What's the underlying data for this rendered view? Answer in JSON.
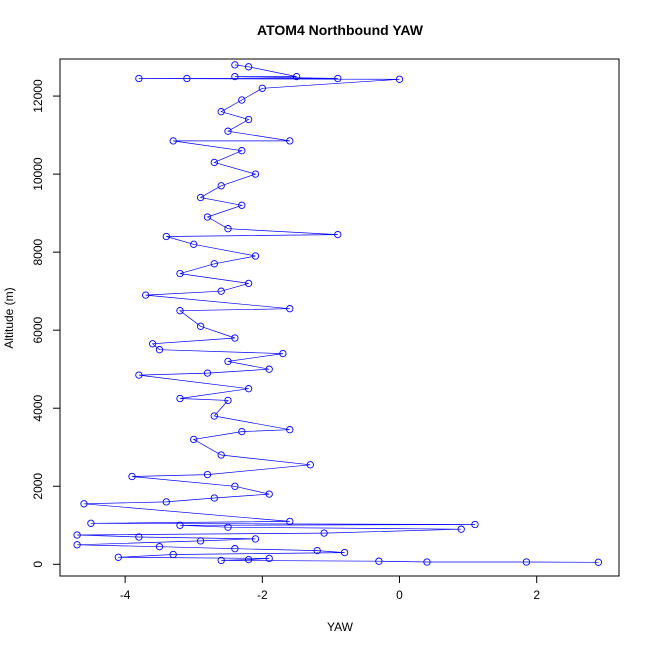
{
  "chart_data": {
    "type": "scatter",
    "title": "ATOM4 Northbound YAW",
    "xlabel": "YAW",
    "ylabel": "Altitude (m)",
    "xlim": [
      -4.95,
      3.2
    ],
    "ylim": [
      -300,
      12950
    ],
    "xticks": [
      -4,
      -2,
      0,
      2
    ],
    "yticks": [
      0,
      2000,
      4000,
      6000,
      8000,
      10000,
      12000
    ],
    "grid": false,
    "legend": "none",
    "series_color": "#0000ff",
    "points": [
      {
        "x": -2.6,
        "y": 100
      },
      {
        "x": -1.9,
        "y": 150
      },
      {
        "x": -3.3,
        "y": 250
      },
      {
        "x": 2.9,
        "y": 50
      },
      {
        "x": 1.85,
        "y": 60
      },
      {
        "x": 0.4,
        "y": 60
      },
      {
        "x": -0.3,
        "y": 80
      },
      {
        "x": -2.2,
        "y": 120
      },
      {
        "x": -4.1,
        "y": 180
      },
      {
        "x": -4.7,
        "y": 500
      },
      {
        "x": -3.5,
        "y": 450
      },
      {
        "x": -2.4,
        "y": 400
      },
      {
        "x": -1.2,
        "y": 350
      },
      {
        "x": -0.8,
        "y": 300
      },
      {
        "x": -2.9,
        "y": 600
      },
      {
        "x": -4.7,
        "y": 750
      },
      {
        "x": -3.8,
        "y": 700
      },
      {
        "x": -2.1,
        "y": 650
      },
      {
        "x": -1.1,
        "y": 800
      },
      {
        "x": 0.9,
        "y": 900
      },
      {
        "x": 1.1,
        "y": 1020
      },
      {
        "x": -4.5,
        "y": 1050
      },
      {
        "x": -3.2,
        "y": 1000
      },
      {
        "x": -2.5,
        "y": 950
      },
      {
        "x": -1.6,
        "y": 1100
      },
      {
        "x": -4.6,
        "y": 1550
      },
      {
        "x": -3.4,
        "y": 1600
      },
      {
        "x": -2.7,
        "y": 1700
      },
      {
        "x": -1.9,
        "y": 1800
      },
      {
        "x": -2.4,
        "y": 2000
      },
      {
        "x": -3.9,
        "y": 2250
      },
      {
        "x": -2.8,
        "y": 2300
      },
      {
        "x": -1.3,
        "y": 2550
      },
      {
        "x": -2.6,
        "y": 2800
      },
      {
        "x": -3.0,
        "y": 3200
      },
      {
        "x": -2.3,
        "y": 3400
      },
      {
        "x": -1.6,
        "y": 3450
      },
      {
        "x": -2.7,
        "y": 3800
      },
      {
        "x": -2.5,
        "y": 4200
      },
      {
        "x": -3.2,
        "y": 4250
      },
      {
        "x": -2.2,
        "y": 4500
      },
      {
        "x": -3.8,
        "y": 4850
      },
      {
        "x": -2.8,
        "y": 4900
      },
      {
        "x": -1.9,
        "y": 5000
      },
      {
        "x": -2.5,
        "y": 5200
      },
      {
        "x": -3.5,
        "y": 5500
      },
      {
        "x": -3.6,
        "y": 5650
      },
      {
        "x": -1.7,
        "y": 5400
      },
      {
        "x": -2.4,
        "y": 5800
      },
      {
        "x": -2.9,
        "y": 6100
      },
      {
        "x": -3.2,
        "y": 6500
      },
      {
        "x": -1.6,
        "y": 6550
      },
      {
        "x": -3.7,
        "y": 6900
      },
      {
        "x": -2.6,
        "y": 7000
      },
      {
        "x": -2.2,
        "y": 7200
      },
      {
        "x": -3.2,
        "y": 7450
      },
      {
        "x": -2.7,
        "y": 7700
      },
      {
        "x": -2.1,
        "y": 7900
      },
      {
        "x": -3.0,
        "y": 8200
      },
      {
        "x": -3.4,
        "y": 8400
      },
      {
        "x": -0.9,
        "y": 8450
      },
      {
        "x": -2.5,
        "y": 8600
      },
      {
        "x": -2.8,
        "y": 8900
      },
      {
        "x": -2.3,
        "y": 9200
      },
      {
        "x": -2.9,
        "y": 9400
      },
      {
        "x": -2.6,
        "y": 9700
      },
      {
        "x": -2.1,
        "y": 10000
      },
      {
        "x": -2.7,
        "y": 10300
      },
      {
        "x": -2.3,
        "y": 10600
      },
      {
        "x": -3.3,
        "y": 10850
      },
      {
        "x": -1.6,
        "y": 10850
      },
      {
        "x": -2.5,
        "y": 11100
      },
      {
        "x": -2.2,
        "y": 11400
      },
      {
        "x": -2.6,
        "y": 11600
      },
      {
        "x": -2.3,
        "y": 11900
      },
      {
        "x": -2.0,
        "y": 12200
      },
      {
        "x": -3.8,
        "y": 12450
      },
      {
        "x": -3.1,
        "y": 12450
      },
      {
        "x": -2.4,
        "y": 12500
      },
      {
        "x": -1.5,
        "y": 12500
      },
      {
        "x": -0.9,
        "y": 12450
      },
      {
        "x": 0.0,
        "y": 12430
      },
      {
        "x": -2.4,
        "y": 12800
      },
      {
        "x": -2.2,
        "y": 12750
      }
    ]
  }
}
